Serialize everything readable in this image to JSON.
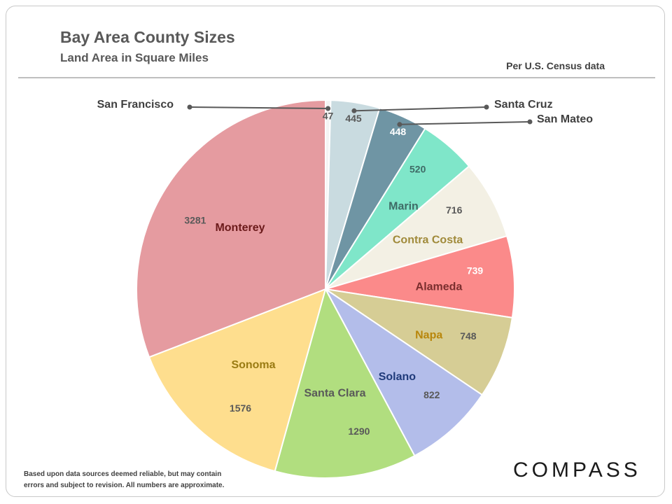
{
  "header": {
    "title": "Bay Area County Sizes",
    "subtitle": "Land Area in Square Miles",
    "source": "Per U.S. Census data"
  },
  "footer": {
    "disclaimer_line1": "Based upon data sources deemed reliable, but may contain",
    "disclaimer_line2": "errors and subject to revision. All numbers are approximate.",
    "logo": "COMPASS"
  },
  "chart_data": {
    "type": "pie",
    "title": "Bay Area County Sizes",
    "subtitle": "Land Area in Square Miles",
    "unit": "Square Miles",
    "start": "12 o'clock, clockwise",
    "slices": [
      {
        "label": "San Francisco",
        "value": 47,
        "color": "#f4f4f4",
        "label_color": "#404040",
        "value_color": "#595959",
        "callout": true
      },
      {
        "label": "Santa Cruz",
        "value": 445,
        "color": "#c9dbe0",
        "label_color": "#404040",
        "value_color": "#595959",
        "callout": true
      },
      {
        "label": "San Mateo",
        "value": 448,
        "color": "#6f95a4",
        "label_color": "#404040",
        "value_color": "#ffffff",
        "callout": true
      },
      {
        "label": "Marin",
        "value": 520,
        "color": "#7fe6c9",
        "label_color": "#3f6b66",
        "value_color": "#3f6b66",
        "callout": false
      },
      {
        "label": "Contra Costa",
        "value": 716,
        "color": "#f3f0e4",
        "label_color": "#a08a3a",
        "value_color": "#595959",
        "callout": false
      },
      {
        "label": "Alameda",
        "value": 739,
        "color": "#fb8a8a",
        "label_color": "#7a2e2e",
        "value_color": "#ffffff",
        "callout": false
      },
      {
        "label": "Napa",
        "value": 748,
        "color": "#d6cd95",
        "label_color": "#b8860b",
        "value_color": "#595959",
        "callout": false
      },
      {
        "label": "Solano",
        "value": 822,
        "color": "#b3bdea",
        "label_color": "#1f3a7a",
        "value_color": "#595959",
        "callout": false
      },
      {
        "label": "Santa Clara",
        "value": 1290,
        "color": "#b1de7f",
        "label_color": "#595959",
        "value_color": "#595959",
        "callout": false
      },
      {
        "label": "Sonoma",
        "value": 1576,
        "color": "#fede8e",
        "label_color": "#9a7b12",
        "value_color": "#595959",
        "callout": false
      },
      {
        "label": "Monterey",
        "value": 3281,
        "color": "#e59ba0",
        "label_color": "#6b1a1a",
        "value_color": "#595959",
        "callout": false
      }
    ]
  }
}
